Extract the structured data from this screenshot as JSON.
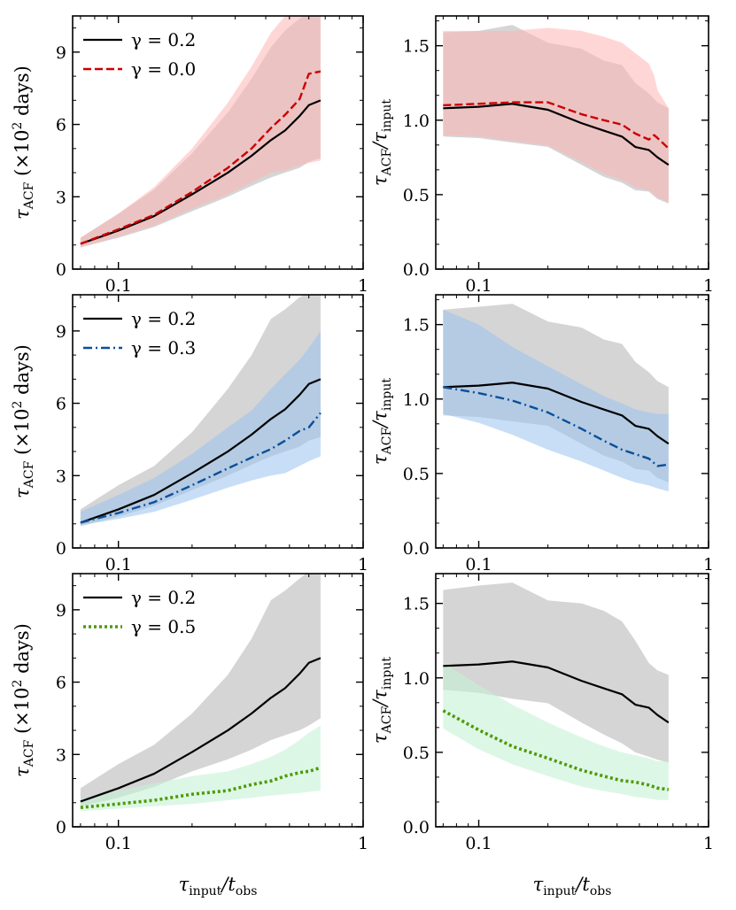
{
  "colors": {
    "black": "#000000",
    "red": "#cc0000",
    "red_band": "#ffb4b4",
    "gray_band": "#b3b3b3",
    "blue": "#0b4f9c",
    "blue_band": "#99c2ee",
    "green": "#4e9a06",
    "green_band": "#c6f2d6"
  },
  "shared_x": {
    "scale": "log",
    "xlim": [
      0.065,
      1.0
    ],
    "ticks": [
      0.1,
      1
    ],
    "tick_labels": [
      "0.1",
      "1"
    ],
    "xlabel_main": "τ",
    "xlabel_sub": "input",
    "xlabel_sep": "/t",
    "xlabel_sub2": "obs"
  },
  "chart_data": [
    {
      "type": "line",
      "panel": "top-left",
      "ylabel_main": "τ",
      "ylabel_sub": "ACF",
      "ylabel_rest": " (×10",
      "ylabel_sup": "2",
      "ylabel_unit": " days)",
      "ylim": [
        0,
        10.5
      ],
      "yticks": [
        0,
        3,
        6,
        9
      ],
      "ytick_labels": [
        "0",
        "3",
        "6",
        "9"
      ],
      "legend": [
        "γ = 0.2",
        "γ = 0.0"
      ],
      "series": [
        {
          "name": "γ = 0.2",
          "color_key": "black",
          "dash": "solid",
          "band_color_key": "gray_band",
          "x": [
            0.07,
            0.1,
            0.14,
            0.2,
            0.28,
            0.35,
            0.42,
            0.48,
            0.55,
            0.6,
            0.67
          ],
          "y": [
            1.05,
            1.6,
            2.2,
            3.1,
            4.0,
            4.7,
            5.35,
            5.75,
            6.35,
            6.8,
            7.0
          ],
          "lower": [
            0.9,
            1.3,
            1.75,
            2.4,
            3.0,
            3.45,
            3.8,
            4.0,
            4.2,
            4.45,
            4.6
          ],
          "upper": [
            1.3,
            2.3,
            3.3,
            4.8,
            6.5,
            7.9,
            9.2,
            9.9,
            10.4,
            10.6,
            10.6
          ]
        },
        {
          "name": "γ = 0.0",
          "color_key": "red",
          "dash": "dashed",
          "band_color_key": "red_band",
          "x": [
            0.07,
            0.1,
            0.14,
            0.2,
            0.28,
            0.35,
            0.42,
            0.48,
            0.55,
            0.6,
            0.67
          ],
          "y": [
            1.05,
            1.65,
            2.25,
            3.2,
            4.2,
            5.0,
            5.85,
            6.4,
            7.05,
            8.1,
            8.2
          ],
          "lower": [
            0.9,
            1.35,
            1.8,
            2.5,
            3.1,
            3.6,
            4.0,
            4.1,
            4.3,
            4.4,
            4.5
          ],
          "upper": [
            1.3,
            2.3,
            3.4,
            5.0,
            6.9,
            8.4,
            9.8,
            10.5,
            10.6,
            10.6,
            10.6
          ]
        }
      ]
    },
    {
      "type": "line",
      "panel": "top-right",
      "ylabel_main": "τ",
      "ylabel_sub": "ACF",
      "ylabel_rest": "/τ",
      "ylabel_sub2": "input",
      "ylim": [
        0,
        1.7
      ],
      "yticks": [
        0,
        0.5,
        1.0,
        1.5
      ],
      "ytick_labels": [
        "0.0",
        "0.5",
        "1.0",
        "1.5"
      ],
      "series": [
        {
          "name": "γ = 0.2",
          "color_key": "black",
          "dash": "solid",
          "band_color_key": "gray_band",
          "x": [
            0.07,
            0.1,
            0.14,
            0.2,
            0.28,
            0.35,
            0.42,
            0.48,
            0.55,
            0.6,
            0.67
          ],
          "y": [
            1.08,
            1.09,
            1.11,
            1.07,
            0.98,
            0.93,
            0.89,
            0.82,
            0.8,
            0.75,
            0.7
          ],
          "lower": [
            0.89,
            0.88,
            0.85,
            0.82,
            0.7,
            0.62,
            0.58,
            0.53,
            0.52,
            0.47,
            0.44
          ],
          "upper": [
            1.59,
            1.6,
            1.64,
            1.52,
            1.48,
            1.4,
            1.37,
            1.25,
            1.18,
            1.12,
            1.08
          ]
        },
        {
          "name": "γ = 0.0",
          "color_key": "red",
          "dash": "dashed",
          "band_color_key": "red_band",
          "x": [
            0.07,
            0.1,
            0.14,
            0.2,
            0.28,
            0.35,
            0.42,
            0.48,
            0.55,
            0.58,
            0.6,
            0.67
          ],
          "y": [
            1.1,
            1.11,
            1.12,
            1.12,
            1.04,
            1.0,
            0.97,
            0.91,
            0.87,
            0.9,
            0.88,
            0.81
          ],
          "lower": [
            0.9,
            0.89,
            0.86,
            0.83,
            0.72,
            0.64,
            0.6,
            0.55,
            0.53,
            0.5,
            0.48,
            0.45
          ],
          "upper": [
            1.6,
            1.6,
            1.6,
            1.62,
            1.6,
            1.56,
            1.52,
            1.45,
            1.38,
            1.3,
            1.2,
            1.08
          ]
        }
      ]
    },
    {
      "type": "line",
      "panel": "middle-left",
      "ylabel_main": "τ",
      "ylabel_sub": "ACF",
      "ylabel_rest": " (×10",
      "ylabel_sup": "2",
      "ylabel_unit": " days)",
      "ylim": [
        0,
        10.5
      ],
      "yticks": [
        0,
        3,
        6,
        9
      ],
      "ytick_labels": [
        "0",
        "3",
        "6",
        "9"
      ],
      "legend": [
        "γ = 0.2",
        "γ = 0.3"
      ],
      "series": [
        {
          "name": "γ = 0.2",
          "color_key": "black",
          "dash": "solid",
          "band_color_key": "gray_band",
          "x": [
            0.07,
            0.1,
            0.14,
            0.2,
            0.28,
            0.35,
            0.42,
            0.48,
            0.55,
            0.6,
            0.67
          ],
          "y": [
            1.05,
            1.6,
            2.2,
            3.1,
            4.0,
            4.7,
            5.35,
            5.75,
            6.35,
            6.8,
            7.0
          ],
          "lower": [
            0.9,
            1.3,
            1.75,
            2.4,
            3.0,
            3.45,
            3.8,
            4.0,
            4.2,
            4.45,
            4.6
          ],
          "upper": [
            1.6,
            2.6,
            3.4,
            4.8,
            6.6,
            8.0,
            9.5,
            9.9,
            10.4,
            10.6,
            10.6
          ]
        },
        {
          "name": "γ = 0.3",
          "color_key": "blue",
          "dash": "dashdot",
          "band_color_key": "blue_band",
          "x": [
            0.07,
            0.1,
            0.14,
            0.2,
            0.28,
            0.35,
            0.42,
            0.48,
            0.55,
            0.6,
            0.67
          ],
          "y": [
            1.05,
            1.45,
            1.9,
            2.6,
            3.3,
            3.75,
            4.1,
            4.45,
            4.85,
            5.0,
            5.6
          ],
          "lower": [
            0.95,
            1.2,
            1.5,
            2.0,
            2.5,
            2.8,
            3.0,
            3.1,
            3.4,
            3.6,
            3.8
          ],
          "upper": [
            1.5,
            2.2,
            2.9,
            3.9,
            5.0,
            5.7,
            6.6,
            7.2,
            7.8,
            8.3,
            9.0
          ]
        }
      ]
    },
    {
      "type": "line",
      "panel": "middle-right",
      "ylabel_main": "τ",
      "ylabel_sub": "ACF",
      "ylabel_rest": "/τ",
      "ylabel_sub2": "input",
      "ylim": [
        0,
        1.7
      ],
      "yticks": [
        0,
        0.5,
        1.0,
        1.5
      ],
      "ytick_labels": [
        "0.0",
        "0.5",
        "1.0",
        "1.5"
      ],
      "series": [
        {
          "name": "γ = 0.2",
          "color_key": "black",
          "dash": "solid",
          "band_color_key": "gray_band",
          "x": [
            0.07,
            0.1,
            0.14,
            0.2,
            0.28,
            0.35,
            0.42,
            0.48,
            0.55,
            0.6,
            0.67
          ],
          "y": [
            1.08,
            1.09,
            1.11,
            1.07,
            0.98,
            0.93,
            0.89,
            0.82,
            0.8,
            0.75,
            0.7
          ],
          "lower": [
            0.89,
            0.88,
            0.85,
            0.82,
            0.7,
            0.62,
            0.58,
            0.53,
            0.52,
            0.47,
            0.44
          ],
          "upper": [
            1.6,
            1.62,
            1.64,
            1.52,
            1.48,
            1.4,
            1.37,
            1.25,
            1.18,
            1.12,
            1.08
          ]
        },
        {
          "name": "γ = 0.3",
          "color_key": "blue",
          "dash": "dashdot",
          "band_color_key": "blue_band",
          "x": [
            0.07,
            0.1,
            0.14,
            0.2,
            0.28,
            0.35,
            0.42,
            0.48,
            0.55,
            0.6,
            0.67
          ],
          "y": [
            1.08,
            1.04,
            0.99,
            0.91,
            0.8,
            0.72,
            0.66,
            0.63,
            0.6,
            0.55,
            0.56
          ],
          "lower": [
            0.9,
            0.84,
            0.76,
            0.66,
            0.58,
            0.52,
            0.47,
            0.44,
            0.42,
            0.4,
            0.38
          ],
          "upper": [
            1.6,
            1.5,
            1.35,
            1.22,
            1.1,
            1.02,
            0.97,
            0.93,
            0.91,
            0.9,
            0.9
          ]
        }
      ]
    },
    {
      "type": "line",
      "panel": "bottom-left",
      "ylabel_main": "τ",
      "ylabel_sub": "ACF",
      "ylabel_rest": " (×10",
      "ylabel_sup": "2",
      "ylabel_unit": " days)",
      "ylim": [
        0,
        10.5
      ],
      "yticks": [
        0,
        3,
        6,
        9
      ],
      "ytick_labels": [
        "0",
        "3",
        "6",
        "9"
      ],
      "legend": [
        "γ = 0.2",
        "γ = 0.5"
      ],
      "series": [
        {
          "name": "γ = 0.2",
          "color_key": "black",
          "dash": "solid",
          "band_color_key": "gray_band",
          "x": [
            0.07,
            0.1,
            0.14,
            0.2,
            0.28,
            0.35,
            0.42,
            0.48,
            0.55,
            0.6,
            0.67
          ],
          "y": [
            1.05,
            1.6,
            2.2,
            3.1,
            4.0,
            4.7,
            5.35,
            5.75,
            6.35,
            6.8,
            7.0
          ],
          "lower": [
            0.85,
            1.2,
            1.65,
            2.3,
            2.8,
            3.2,
            3.6,
            3.8,
            4.0,
            4.2,
            4.5
          ],
          "upper": [
            1.6,
            2.6,
            3.4,
            4.7,
            6.3,
            7.8,
            9.4,
            9.8,
            10.3,
            10.6,
            10.6
          ]
        },
        {
          "name": "γ = 0.5",
          "color_key": "green",
          "dash": "dotted",
          "band_color_key": "green_band",
          "x": [
            0.07,
            0.1,
            0.14,
            0.2,
            0.28,
            0.35,
            0.42,
            0.48,
            0.55,
            0.6,
            0.67
          ],
          "y": [
            0.8,
            0.95,
            1.1,
            1.35,
            1.5,
            1.75,
            1.9,
            2.1,
            2.25,
            2.3,
            2.45
          ],
          "lower": [
            0.65,
            0.75,
            0.85,
            0.95,
            1.1,
            1.2,
            1.3,
            1.35,
            1.4,
            1.45,
            1.5
          ],
          "upper": [
            1.15,
            1.5,
            1.8,
            2.1,
            2.3,
            2.6,
            2.9,
            3.2,
            3.6,
            3.9,
            4.2
          ]
        }
      ]
    },
    {
      "type": "line",
      "panel": "bottom-right",
      "ylabel_main": "τ",
      "ylabel_sub": "ACF",
      "ylabel_rest": "/τ",
      "ylabel_sub2": "input",
      "ylim": [
        0,
        1.7
      ],
      "yticks": [
        0,
        0.5,
        1.0,
        1.5
      ],
      "ytick_labels": [
        "0.0",
        "0.5",
        "1.0",
        "1.5"
      ],
      "series": [
        {
          "name": "γ = 0.2",
          "color_key": "black",
          "dash": "solid",
          "band_color_key": "gray_band",
          "x": [
            0.07,
            0.1,
            0.14,
            0.2,
            0.28,
            0.35,
            0.42,
            0.48,
            0.55,
            0.6,
            0.67
          ],
          "y": [
            1.08,
            1.09,
            1.11,
            1.07,
            0.98,
            0.93,
            0.89,
            0.82,
            0.8,
            0.75,
            0.7
          ],
          "lower": [
            0.92,
            0.9,
            0.86,
            0.83,
            0.7,
            0.62,
            0.56,
            0.5,
            0.47,
            0.45,
            0.43
          ],
          "upper": [
            1.59,
            1.62,
            1.64,
            1.52,
            1.5,
            1.45,
            1.38,
            1.25,
            1.1,
            1.05,
            1.02
          ]
        },
        {
          "name": "γ = 0.5",
          "color_key": "green",
          "dash": "dotted",
          "band_color_key": "green_band",
          "x": [
            0.07,
            0.1,
            0.14,
            0.2,
            0.28,
            0.35,
            0.42,
            0.48,
            0.55,
            0.6,
            0.67
          ],
          "y": [
            0.78,
            0.65,
            0.54,
            0.46,
            0.38,
            0.34,
            0.31,
            0.3,
            0.28,
            0.26,
            0.25
          ],
          "lower": [
            0.66,
            0.52,
            0.42,
            0.34,
            0.27,
            0.24,
            0.22,
            0.2,
            0.19,
            0.18,
            0.18
          ],
          "upper": [
            1.1,
            0.95,
            0.82,
            0.7,
            0.6,
            0.54,
            0.5,
            0.48,
            0.46,
            0.44,
            0.44
          ]
        }
      ]
    }
  ]
}
